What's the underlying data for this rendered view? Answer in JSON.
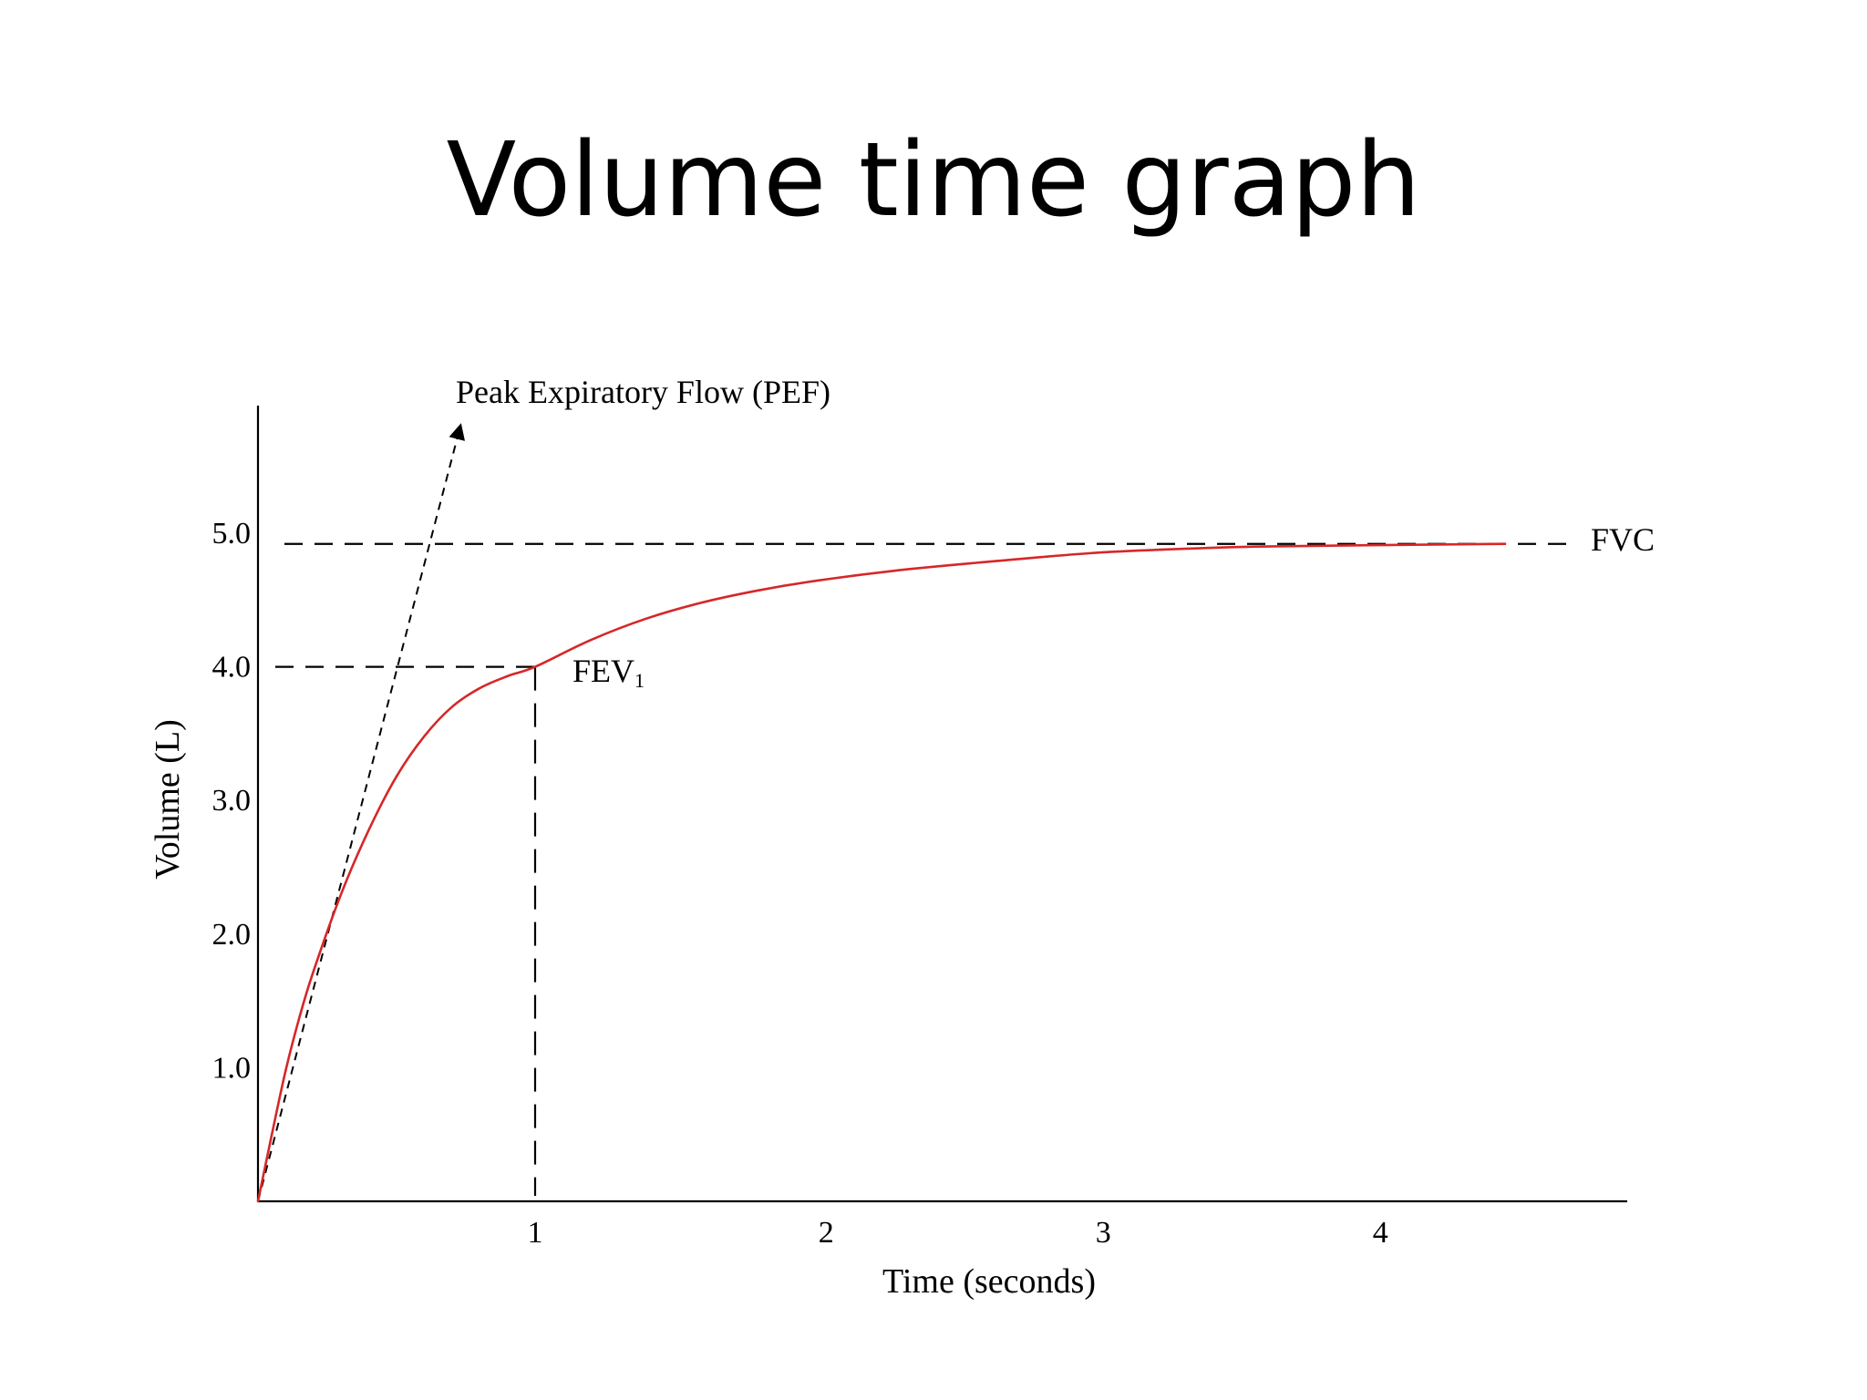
{
  "slide": {
    "title": "Volume time graph"
  },
  "chart_data": {
    "type": "line",
    "xlabel": "Time (seconds)",
    "ylabel": "Volume (L)",
    "x_ticks": [
      "1",
      "2",
      "3",
      "4"
    ],
    "y_ticks": [
      "1.0",
      "2.0",
      "3.0",
      "4.0",
      "5.0"
    ],
    "xlim": [
      0,
      4.9
    ],
    "ylim": [
      0,
      5.9
    ],
    "grid": false,
    "series": [
      {
        "color": "#d62728",
        "x": [
          0,
          0.05,
          0.1,
          0.15,
          0.2,
          0.3,
          0.4,
          0.5,
          0.6,
          0.7,
          0.8,
          0.9,
          1.0,
          1.2,
          1.4,
          1.6,
          1.8,
          2.0,
          2.3,
          2.6,
          3.0,
          3.3,
          3.6,
          4.0,
          4.5
        ],
        "y": [
          0,
          0.5,
          0.98,
          1.38,
          1.72,
          2.3,
          2.78,
          3.18,
          3.48,
          3.7,
          3.84,
          3.93,
          4.0,
          4.2,
          4.36,
          4.48,
          4.57,
          4.64,
          4.72,
          4.78,
          4.85,
          4.88,
          4.9,
          4.91,
          4.92
        ]
      }
    ],
    "annotations": {
      "pef": {
        "label": "Peak Expiratory Flow (PEF)",
        "from": [
          0,
          0
        ],
        "to": [
          0.73,
          5.8
        ]
      },
      "fvc": {
        "label": "FVC",
        "y": 4.92
      },
      "fev1": {
        "label": "FEV",
        "subscript": "1",
        "x": 1,
        "y": 4.0
      }
    }
  }
}
